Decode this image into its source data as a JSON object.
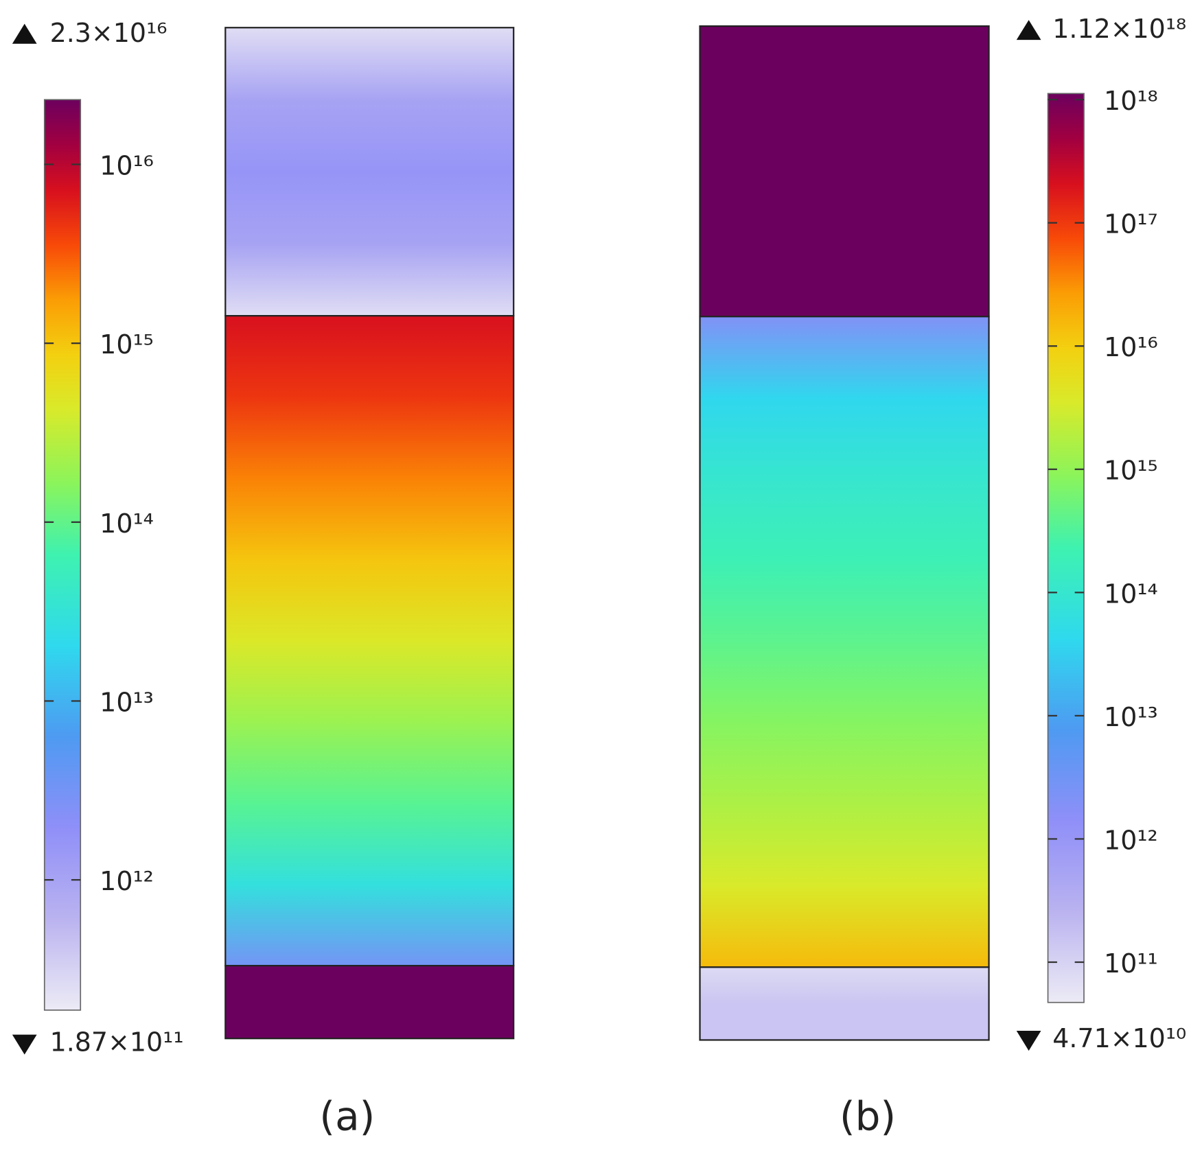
{
  "chart_data": [
    {
      "type": "colormap",
      "caption": "(a)",
      "zscale": "log",
      "colorbar_position": "left",
      "max": {
        "value": 2.3e+16,
        "label": "2.3×10¹⁶"
      },
      "min": {
        "value": 187000000000.0,
        "label": "1.87×10¹¹"
      },
      "colorbar_ticks": [
        {
          "value": 1000000000000.0,
          "label": "10¹²"
        },
        {
          "value": 10000000000000.0,
          "label": "10¹³"
        },
        {
          "value": 100000000000000.0,
          "label": "10¹⁴"
        },
        {
          "value": 1000000000000000.0,
          "label": "10¹⁵"
        },
        {
          "value": 1e+16,
          "label": "10¹⁶"
        }
      ],
      "regions": [
        {
          "values": [
            250000000000.0,
            1000000000000.0,
            1600000000000.0,
            1000000000000.0,
            250000000000.0
          ]
        },
        {
          "values": [
            7100000000000000.0,
            4500000000000000.0,
            2200000000000000.0,
            1000000000000000.0,
            450000000000000.0,
            200000000000000.0,
            90000000000000.0,
            28000000000000.0,
            3200000000000.0
          ]
        },
        {
          "values": [
            2.3e+16,
            2.3e+16
          ]
        }
      ]
    },
    {
      "type": "colormap",
      "caption": "(b)",
      "zscale": "log",
      "colorbar_position": "right",
      "max": {
        "value": 1.12e+18,
        "label": "1.12×10¹⁸"
      },
      "min": {
        "value": 47100000000.0,
        "label": "4.71×10¹⁰"
      },
      "colorbar_ticks": [
        {
          "value": 100000000000.0,
          "label": "10¹¹"
        },
        {
          "value": 1000000000000.0,
          "label": "10¹²"
        },
        {
          "value": 10000000000000.0,
          "label": "10¹³"
        },
        {
          "value": 100000000000000.0,
          "label": "10¹⁴"
        },
        {
          "value": 1000000000000000.0,
          "label": "10¹⁵"
        },
        {
          "value": 1e+16,
          "label": "10¹⁶"
        },
        {
          "value": 1e+17,
          "label": "10¹⁷"
        },
        {
          "value": 1e+18,
          "label": "10¹⁸"
        }
      ],
      "regions": [
        {
          "values": [
            1.12e+18,
            1.12e+18
          ]
        },
        {
          "values": [
            2000000000000.0,
            40000000000000.0,
            100000000000000.0,
            200000000000000.0,
            400000000000000.0,
            800000000000000.0,
            1600000000000000.0,
            3500000000000000.0,
            1.5e+16
          ]
        },
        {
          "values": [
            80000000000.0,
            150000000000.0,
            150000000000.0
          ]
        }
      ]
    }
  ]
}
